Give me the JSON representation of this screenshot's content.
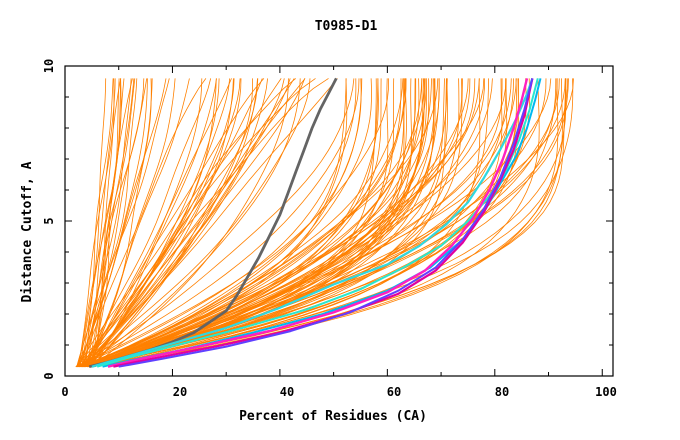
{
  "chart_data": {
    "type": "line",
    "title": "T0985-D1",
    "xlabel": "Percent of Residues (CA)",
    "ylabel": "Distance Cutoff, A",
    "xlim": [
      0,
      102
    ],
    "ylim": [
      0,
      10
    ],
    "xticks": [
      "0",
      "20",
      "40",
      "60",
      "80",
      "100"
    ],
    "yticks": [
      "0",
      "5",
      "10"
    ],
    "x_tick_values": [
      0,
      20,
      40,
      60,
      80,
      100
    ],
    "y_tick_values": [
      0,
      5,
      10
    ],
    "grid": false,
    "background_series_color": "#ff8000",
    "background_series_count": 140,
    "series": [
      {
        "name": "highlight-gray",
        "color": "#646464",
        "width": 2.8,
        "points": [
          [
            4.5,
            0.3
          ],
          [
            8,
            0.45
          ],
          [
            12,
            0.65
          ],
          [
            16,
            0.85
          ],
          [
            20,
            1.1
          ],
          [
            24,
            1.4
          ],
          [
            27,
            1.75
          ],
          [
            30,
            2.1
          ],
          [
            32,
            2.6
          ],
          [
            34,
            3.2
          ],
          [
            36,
            3.8
          ],
          [
            38,
            4.5
          ],
          [
            40,
            5.2
          ],
          [
            41.5,
            5.9
          ],
          [
            43,
            6.6
          ],
          [
            44.5,
            7.3
          ],
          [
            46,
            8
          ],
          [
            47.5,
            8.6
          ],
          [
            49,
            9.1
          ],
          [
            50.5,
            9.6
          ]
        ]
      },
      {
        "name": "highlight-cyan-a",
        "color": "#30d8e0",
        "width": 2.2,
        "points": [
          [
            5,
            0.3
          ],
          [
            10,
            0.55
          ],
          [
            20,
            1.05
          ],
          [
            30,
            1.55
          ],
          [
            40,
            2.2
          ],
          [
            50,
            2.95
          ],
          [
            60,
            3.6
          ],
          [
            66,
            4.2
          ],
          [
            71,
            4.9
          ],
          [
            75,
            5.6
          ],
          [
            78,
            6.4
          ],
          [
            81,
            7.3
          ],
          [
            84,
            8.3
          ],
          [
            86,
            9.1
          ],
          [
            87,
            9.6
          ]
        ]
      },
      {
        "name": "highlight-cyan-b",
        "color": "#00b8f0",
        "width": 2.0,
        "points": [
          [
            7,
            0.3
          ],
          [
            12,
            0.5
          ],
          [
            22,
            0.85
          ],
          [
            35,
            1.4
          ],
          [
            48,
            2.0
          ],
          [
            60,
            2.75
          ],
          [
            68,
            3.5
          ],
          [
            74,
            4.4
          ],
          [
            78,
            5.3
          ],
          [
            81,
            6.2
          ],
          [
            84,
            7.1
          ],
          [
            86,
            8.0
          ],
          [
            87.5,
            8.9
          ],
          [
            88.5,
            9.6
          ]
        ]
      },
      {
        "name": "highlight-cyan-c",
        "color": "#28e8d0",
        "width": 2.0,
        "points": [
          [
            6,
            0.3
          ],
          [
            12,
            0.6
          ],
          [
            22,
            1.05
          ],
          [
            33,
            1.55
          ],
          [
            45,
            2.15
          ],
          [
            55,
            2.8
          ],
          [
            63,
            3.5
          ],
          [
            70,
            4.2
          ],
          [
            75,
            5.0
          ],
          [
            79,
            5.8
          ],
          [
            82,
            6.6
          ],
          [
            84.5,
            7.6
          ],
          [
            86.5,
            8.6
          ],
          [
            88,
            9.6
          ]
        ]
      },
      {
        "name": "highlight-magenta-a",
        "color": "#ff20c0",
        "width": 2.4,
        "points": [
          [
            8,
            0.3
          ],
          [
            14,
            0.55
          ],
          [
            25,
            0.95
          ],
          [
            38,
            1.45
          ],
          [
            50,
            2.05
          ],
          [
            60,
            2.7
          ],
          [
            67,
            3.4
          ],
          [
            72,
            4.2
          ],
          [
            76,
            5.1
          ],
          [
            79,
            6.0
          ],
          [
            81.5,
            7.0
          ],
          [
            83.5,
            8.0
          ],
          [
            85,
            8.9
          ],
          [
            86,
            9.6
          ]
        ]
      },
      {
        "name": "highlight-magenta-b",
        "color": "#e000a0",
        "width": 2.2,
        "points": [
          [
            9,
            0.3
          ],
          [
            16,
            0.55
          ],
          [
            28,
            0.95
          ],
          [
            40,
            1.4
          ],
          [
            52,
            2.0
          ],
          [
            62,
            2.65
          ],
          [
            69,
            3.4
          ],
          [
            74,
            4.3
          ],
          [
            78,
            5.3
          ],
          [
            81,
            6.3
          ],
          [
            83.5,
            7.3
          ],
          [
            85.5,
            8.4
          ],
          [
            87,
            9.6
          ]
        ]
      },
      {
        "name": "highlight-purple",
        "color": "#6040ff",
        "width": 2.0,
        "points": [
          [
            10,
            0.3
          ],
          [
            18,
            0.55
          ],
          [
            30,
            0.95
          ],
          [
            42,
            1.45
          ],
          [
            53,
            2.05
          ],
          [
            62,
            2.75
          ],
          [
            69,
            3.5
          ],
          [
            74,
            4.4
          ],
          [
            78,
            5.4
          ],
          [
            81,
            6.4
          ],
          [
            83.5,
            7.5
          ],
          [
            85.5,
            8.6
          ],
          [
            87,
            9.6
          ]
        ]
      }
    ]
  }
}
